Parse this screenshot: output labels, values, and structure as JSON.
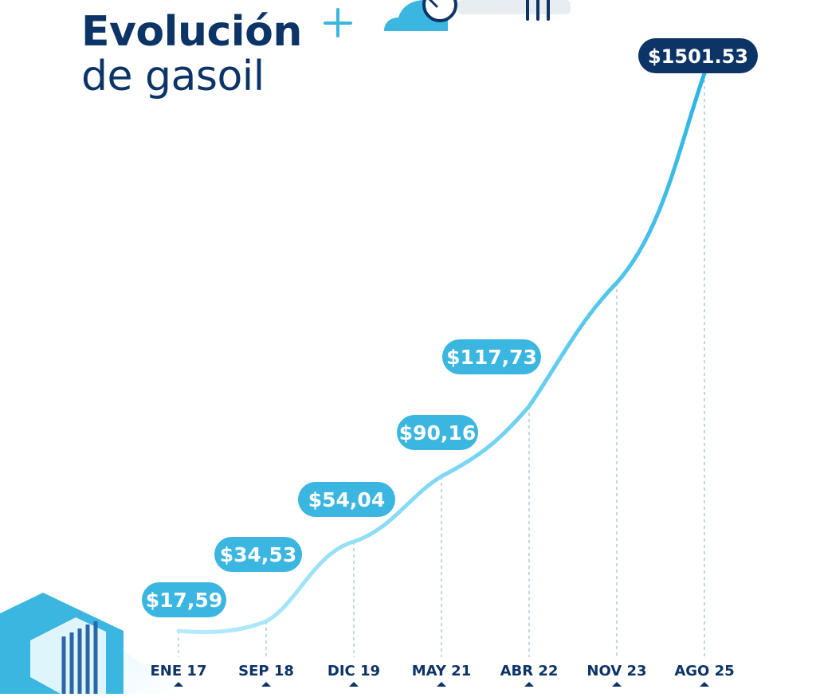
{
  "title": {
    "line1": "Evolución",
    "line2": "de gasoil"
  },
  "colors": {
    "title": "#0d3466",
    "accent": "#3ab6e0",
    "light_accent": "#8fd9f4",
    "final_badge": "#0d3466",
    "grid": "#9fbccf"
  },
  "decorations": {
    "top_icon": "cloud-gauge-icon",
    "bottom_icon": "isometric-container-icon"
  },
  "chart_data": {
    "type": "line",
    "title": "Evolución de gasoil",
    "categories": [
      "ENE 17",
      "SEP 18",
      "DIC 19",
      "MAY 21",
      "ABR 22",
      "NOV 23",
      "AGO 25"
    ],
    "series": [
      {
        "name": "",
        "values": [
          17.59,
          34.53,
          54.04,
          90.16,
          117.73,
          null,
          1501.53
        ]
      }
    ],
    "labels": [
      "$17,59",
      "$34,53",
      "$54,04",
      "$90,16",
      "$117,73",
      "",
      "$1501.53"
    ],
    "xlabel": "",
    "ylabel": "",
    "grid": "vertical dashed guides",
    "legend": "none"
  }
}
